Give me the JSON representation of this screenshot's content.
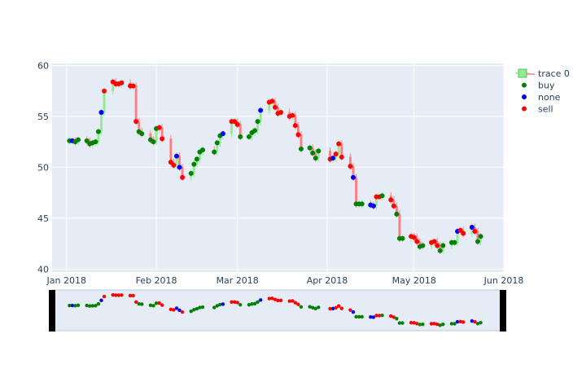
{
  "chart_data": {
    "type": "candlestick",
    "title": "",
    "xlabel": "",
    "ylabel": "",
    "x_range": [
      "2017-12-27",
      "2018-06-01"
    ],
    "ylim": [
      39.7,
      60.2
    ],
    "y_ticks": [
      40,
      45,
      50,
      55,
      60
    ],
    "x_ticks": [
      {
        "date": "2018-01-01",
        "label": "Jan 2018"
      },
      {
        "date": "2018-02-01",
        "label": "Feb 2018"
      },
      {
        "date": "2018-03-01",
        "label": "Mar 2018"
      },
      {
        "date": "2018-04-01",
        "label": "Apr 2018"
      },
      {
        "date": "2018-05-01",
        "label": "May 2018"
      },
      {
        "date": "2018-06-01",
        "label": "Jun 2018"
      }
    ],
    "grid": true,
    "legend_position": "top-right",
    "rangeslider": true,
    "colors": {
      "plot_bg": "#e5ecf6",
      "grid": "#ffffff",
      "increasing": "#90ee90",
      "decreasing": "#ff7f7f",
      "buy": "#008000",
      "none": "#0000ff",
      "sell": "#ff0000"
    },
    "legend": [
      {
        "name": "trace 0",
        "kind": "candle"
      },
      {
        "name": "buy",
        "kind": "marker",
        "color": "#008000"
      },
      {
        "name": "none",
        "kind": "marker",
        "color": "#0000ff"
      },
      {
        "name": "sell",
        "kind": "marker",
        "color": "#ff0000"
      }
    ],
    "points": [
      {
        "date": "2018-01-02",
        "value": 52.6,
        "signal": "buy"
      },
      {
        "date": "2018-01-03",
        "value": 52.6,
        "signal": "none"
      },
      {
        "date": "2018-01-04",
        "value": 52.5,
        "signal": "buy"
      },
      {
        "date": "2018-01-05",
        "value": 52.7,
        "signal": "buy"
      },
      {
        "date": "2018-01-08",
        "value": 52.6,
        "signal": "buy"
      },
      {
        "date": "2018-01-09",
        "value": 52.3,
        "signal": "buy"
      },
      {
        "date": "2018-01-10",
        "value": 52.4,
        "signal": "buy"
      },
      {
        "date": "2018-01-11",
        "value": 52.5,
        "signal": "buy"
      },
      {
        "date": "2018-01-12",
        "value": 53.5,
        "signal": "buy"
      },
      {
        "date": "2018-01-13",
        "value": 55.4,
        "signal": "none"
      },
      {
        "date": "2018-01-14",
        "value": 57.5,
        "signal": "sell"
      },
      {
        "date": "2018-01-17",
        "value": 58.4,
        "signal": "sell"
      },
      {
        "date": "2018-01-18",
        "value": 58.2,
        "signal": "sell"
      },
      {
        "date": "2018-01-19",
        "value": 58.2,
        "signal": "sell"
      },
      {
        "date": "2018-01-20",
        "value": 58.3,
        "signal": "sell"
      },
      {
        "date": "2018-01-23",
        "value": 58.0,
        "signal": "sell"
      },
      {
        "date": "2018-01-24",
        "value": 58.0,
        "signal": "sell"
      },
      {
        "date": "2018-01-25",
        "value": 54.5,
        "signal": "sell"
      },
      {
        "date": "2018-01-26",
        "value": 53.5,
        "signal": "buy"
      },
      {
        "date": "2018-01-27",
        "value": 53.3,
        "signal": "buy"
      },
      {
        "date": "2018-01-30",
        "value": 52.7,
        "signal": "buy"
      },
      {
        "date": "2018-01-31",
        "value": 52.5,
        "signal": "buy"
      },
      {
        "date": "2018-02-01",
        "value": 53.8,
        "signal": "buy"
      },
      {
        "date": "2018-02-02",
        "value": 53.9,
        "signal": "sell"
      },
      {
        "date": "2018-02-03",
        "value": 52.8,
        "signal": "sell"
      },
      {
        "date": "2018-02-06",
        "value": 50.5,
        "signal": "sell"
      },
      {
        "date": "2018-02-07",
        "value": 50.2,
        "signal": "sell"
      },
      {
        "date": "2018-02-08",
        "value": 51.1,
        "signal": "none"
      },
      {
        "date": "2018-02-09",
        "value": 50.0,
        "signal": "none"
      },
      {
        "date": "2018-02-10",
        "value": 49.0,
        "signal": "sell"
      },
      {
        "date": "2018-02-13",
        "value": 49.4,
        "signal": "buy"
      },
      {
        "date": "2018-02-14",
        "value": 50.3,
        "signal": "buy"
      },
      {
        "date": "2018-02-15",
        "value": 50.8,
        "signal": "buy"
      },
      {
        "date": "2018-02-16",
        "value": 51.5,
        "signal": "buy"
      },
      {
        "date": "2018-02-17",
        "value": 51.7,
        "signal": "buy"
      },
      {
        "date": "2018-02-21",
        "value": 51.5,
        "signal": "buy"
      },
      {
        "date": "2018-02-22",
        "value": 52.4,
        "signal": "buy"
      },
      {
        "date": "2018-02-23",
        "value": 53.1,
        "signal": "buy"
      },
      {
        "date": "2018-02-24",
        "value": 53.3,
        "signal": "none"
      },
      {
        "date": "2018-02-27",
        "value": 54.5,
        "signal": "sell"
      },
      {
        "date": "2018-02-28",
        "value": 54.5,
        "signal": "sell"
      },
      {
        "date": "2018-03-01",
        "value": 54.2,
        "signal": "sell"
      },
      {
        "date": "2018-03-02",
        "value": 53.0,
        "signal": "buy"
      },
      {
        "date": "2018-03-05",
        "value": 53.0,
        "signal": "buy"
      },
      {
        "date": "2018-03-06",
        "value": 53.4,
        "signal": "buy"
      },
      {
        "date": "2018-03-07",
        "value": 53.6,
        "signal": "buy"
      },
      {
        "date": "2018-03-08",
        "value": 54.5,
        "signal": "buy"
      },
      {
        "date": "2018-03-09",
        "value": 55.6,
        "signal": "none"
      },
      {
        "date": "2018-03-12",
        "value": 56.4,
        "signal": "sell"
      },
      {
        "date": "2018-03-13",
        "value": 56.5,
        "signal": "sell"
      },
      {
        "date": "2018-03-14",
        "value": 55.9,
        "signal": "sell"
      },
      {
        "date": "2018-03-15",
        "value": 55.3,
        "signal": "sell"
      },
      {
        "date": "2018-03-16",
        "value": 55.4,
        "signal": "sell"
      },
      {
        "date": "2018-03-19",
        "value": 55.0,
        "signal": "sell"
      },
      {
        "date": "2018-03-20",
        "value": 55.1,
        "signal": "sell"
      },
      {
        "date": "2018-03-21",
        "value": 54.1,
        "signal": "sell"
      },
      {
        "date": "2018-03-22",
        "value": 53.2,
        "signal": "sell"
      },
      {
        "date": "2018-03-23",
        "value": 51.8,
        "signal": "buy"
      },
      {
        "date": "2018-03-26",
        "value": 51.9,
        "signal": "buy"
      },
      {
        "date": "2018-03-27",
        "value": 51.4,
        "signal": "buy"
      },
      {
        "date": "2018-03-28",
        "value": 50.9,
        "signal": "buy"
      },
      {
        "date": "2018-03-29",
        "value": 51.6,
        "signal": "buy"
      },
      {
        "date": "2018-04-02",
        "value": 50.8,
        "signal": "sell"
      },
      {
        "date": "2018-04-03",
        "value": 50.9,
        "signal": "none"
      },
      {
        "date": "2018-04-04",
        "value": 51.3,
        "signal": "sell"
      },
      {
        "date": "2018-04-05",
        "value": 52.3,
        "signal": "sell"
      },
      {
        "date": "2018-04-06",
        "value": 51.0,
        "signal": "sell"
      },
      {
        "date": "2018-04-09",
        "value": 50.1,
        "signal": "sell"
      },
      {
        "date": "2018-04-10",
        "value": 49.0,
        "signal": "none"
      },
      {
        "date": "2018-04-11",
        "value": 46.4,
        "signal": "buy"
      },
      {
        "date": "2018-04-12",
        "value": 46.4,
        "signal": "buy"
      },
      {
        "date": "2018-04-13",
        "value": 46.4,
        "signal": "buy"
      },
      {
        "date": "2018-04-16",
        "value": 46.3,
        "signal": "none"
      },
      {
        "date": "2018-04-17",
        "value": 46.2,
        "signal": "none"
      },
      {
        "date": "2018-04-18",
        "value": 47.1,
        "signal": "sell"
      },
      {
        "date": "2018-04-19",
        "value": 47.1,
        "signal": "sell"
      },
      {
        "date": "2018-04-20",
        "value": 47.2,
        "signal": "buy"
      },
      {
        "date": "2018-04-23",
        "value": 46.8,
        "signal": "sell"
      },
      {
        "date": "2018-04-24",
        "value": 46.2,
        "signal": "sell"
      },
      {
        "date": "2018-04-25",
        "value": 45.4,
        "signal": "buy"
      },
      {
        "date": "2018-04-26",
        "value": 43.0,
        "signal": "buy"
      },
      {
        "date": "2018-04-27",
        "value": 43.0,
        "signal": "buy"
      },
      {
        "date": "2018-04-30",
        "value": 43.2,
        "signal": "sell"
      },
      {
        "date": "2018-05-01",
        "value": 43.1,
        "signal": "sell"
      },
      {
        "date": "2018-05-02",
        "value": 42.7,
        "signal": "sell"
      },
      {
        "date": "2018-05-03",
        "value": 42.2,
        "signal": "buy"
      },
      {
        "date": "2018-05-04",
        "value": 42.3,
        "signal": "buy"
      },
      {
        "date": "2018-05-07",
        "value": 42.6,
        "signal": "sell"
      },
      {
        "date": "2018-05-08",
        "value": 42.7,
        "signal": "sell"
      },
      {
        "date": "2018-05-09",
        "value": 42.3,
        "signal": "sell"
      },
      {
        "date": "2018-05-10",
        "value": 41.8,
        "signal": "buy"
      },
      {
        "date": "2018-05-11",
        "value": 42.3,
        "signal": "buy"
      },
      {
        "date": "2018-05-14",
        "value": 42.6,
        "signal": "buy"
      },
      {
        "date": "2018-05-15",
        "value": 42.6,
        "signal": "buy"
      },
      {
        "date": "2018-05-16",
        "value": 43.7,
        "signal": "none"
      },
      {
        "date": "2018-05-17",
        "value": 43.8,
        "signal": "sell"
      },
      {
        "date": "2018-05-18",
        "value": 43.5,
        "signal": "sell"
      },
      {
        "date": "2018-05-21",
        "value": 44.1,
        "signal": "none"
      },
      {
        "date": "2018-05-22",
        "value": 43.7,
        "signal": "sell"
      },
      {
        "date": "2018-05-23",
        "value": 42.7,
        "signal": "buy"
      },
      {
        "date": "2018-05-24",
        "value": 43.2,
        "signal": "buy"
      }
    ]
  }
}
